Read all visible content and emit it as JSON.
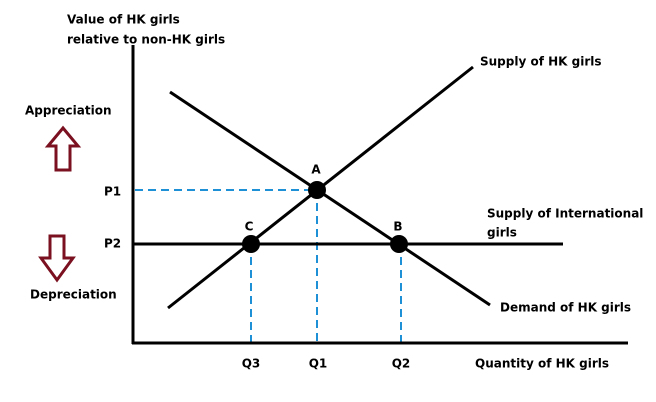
{
  "y_axis_title": [
    "Value of HK girls",
    "relative to non-HK girls"
  ],
  "x_axis_title": "Quantity of HK girls",
  "appreciation": "Appreciation",
  "depreciation": "Depreciation",
  "price_labels": [
    "P1",
    "P2"
  ],
  "quantity_labels": [
    "Q3",
    "Q1",
    "Q2"
  ],
  "points": [
    "A",
    "B",
    "C"
  ],
  "curves": {
    "supply_hk": "Supply of HK girls",
    "supply_international": [
      "Supply of International",
      "girls"
    ],
    "demand_hk": "Demand of HK girls"
  }
}
